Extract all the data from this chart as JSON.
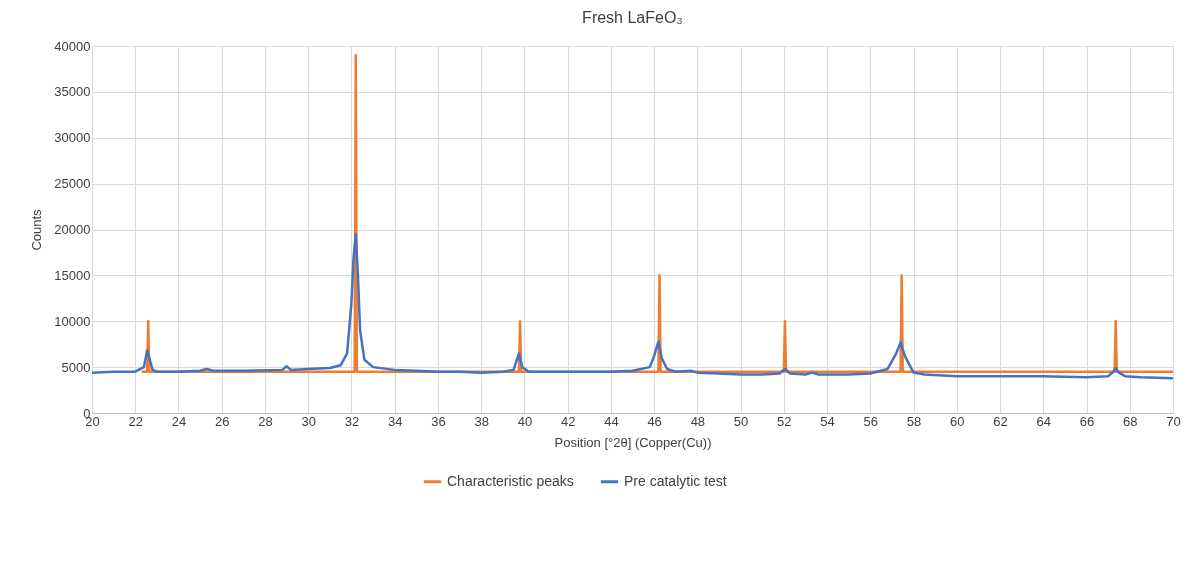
{
  "chart_data": {
    "type": "line",
    "title": "Fresh LaFeO₃",
    "xlabel": "Position [°2θ] (Copper(Cu))",
    "ylabel": "Counts",
    "xlim": [
      20,
      70
    ],
    "xticks": [
      20,
      22,
      24,
      26,
      28,
      30,
      32,
      34,
      36,
      38,
      40,
      42,
      44,
      46,
      48,
      50,
      52,
      54,
      56,
      58,
      60,
      62,
      64,
      66,
      68,
      70
    ],
    "ylim": [
      0,
      40000
    ],
    "yticks": [
      0,
      5000,
      10000,
      15000,
      20000,
      25000,
      30000,
      35000,
      40000
    ],
    "grid": true,
    "legend": "bottom",
    "marker": "none",
    "line_style": "solid",
    "series": [
      {
        "name": "Characteristic peaks",
        "color": "#ed7d31",
        "x": [
          22.3,
          22.55,
          22.6,
          22.65,
          32.1,
          32.15,
          32.2,
          32.25,
          39.7,
          39.75,
          39.8,
          39.85,
          46.15,
          46.2,
          46.25,
          46.3,
          51.95,
          52.0,
          52.05,
          52.1,
          57.35,
          57.4,
          57.45,
          57.5,
          67.25,
          67.3,
          67.35,
          67.4,
          70
        ],
        "values": [
          4500,
          4500,
          10000,
          4500,
          4500,
          4500,
          39000,
          4500,
          4500,
          4500,
          10000,
          4500,
          4500,
          4500,
          15000,
          4500,
          4500,
          4500,
          10000,
          4500,
          4500,
          4500,
          15000,
          4500,
          4500,
          4500,
          10000,
          4500,
          4500
        ]
      },
      {
        "name": "Pre catalytic test",
        "color": "#4472c4",
        "x": [
          20,
          21,
          22,
          22.4,
          22.55,
          22.65,
          22.8,
          23,
          24,
          25,
          25.3,
          25.6,
          27,
          28.8,
          29,
          29.2,
          30,
          31,
          31.5,
          31.8,
          32,
          32.1,
          32.2,
          32.3,
          32.4,
          32.6,
          33,
          34,
          35,
          36,
          37,
          38,
          39,
          39.5,
          39.65,
          39.75,
          39.9,
          40.2,
          41,
          42,
          43,
          44,
          45,
          45.8,
          46.0,
          46.2,
          46.35,
          46.6,
          47,
          47.7,
          48,
          49,
          50,
          51,
          51.8,
          52.05,
          52.3,
          53,
          53.3,
          53.6,
          55,
          56,
          56.8,
          57.2,
          57.4,
          57.6,
          58,
          58.5,
          60,
          62,
          64,
          66,
          67,
          67.2,
          67.35,
          67.5,
          67.8,
          68.5,
          70
        ],
        "values": [
          4400,
          4500,
          4500,
          5000,
          6800,
          6000,
          4700,
          4500,
          4500,
          4600,
          4800,
          4600,
          4600,
          4700,
          5100,
          4700,
          4800,
          4900,
          5200,
          6500,
          12000,
          17000,
          19500,
          15000,
          9000,
          5800,
          5000,
          4700,
          4600,
          4500,
          4500,
          4400,
          4500,
          4700,
          5800,
          6500,
          5000,
          4500,
          4500,
          4500,
          4500,
          4500,
          4600,
          5000,
          6200,
          7800,
          6000,
          4800,
          4500,
          4600,
          4400,
          4300,
          4200,
          4200,
          4300,
          4800,
          4300,
          4200,
          4400,
          4200,
          4200,
          4300,
          4800,
          6500,
          7700,
          6200,
          4400,
          4200,
          4000,
          4000,
          4000,
          3900,
          4000,
          4400,
          4900,
          4400,
          4000,
          3900,
          3800
        ]
      }
    ]
  }
}
